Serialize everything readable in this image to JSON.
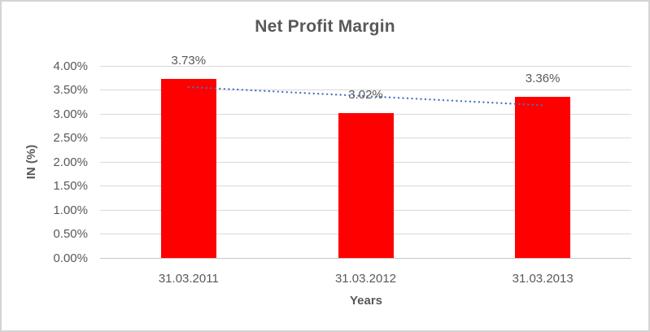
{
  "frame": {
    "background": "#FFFFFF",
    "border_color": "#D4D4D4"
  },
  "chart_data": {
    "type": "bar",
    "title": "Net Profit Margin",
    "xlabel": "Years",
    "ylabel": "IN (%)",
    "categories": [
      "31.03.2011",
      "31.03.2012",
      "31.03.2013"
    ],
    "values": [
      3.73,
      3.02,
      3.36
    ],
    "data_labels": [
      "3.73%",
      "3.02%",
      "3.36%"
    ],
    "y_ticks": [
      "4.00%",
      "3.50%",
      "3.00%",
      "2.50%",
      "2.00%",
      "1.50%",
      "1.00%",
      "0.50%",
      "0.00%"
    ],
    "ylim": [
      0,
      4
    ],
    "y_step": 0.5,
    "grid": true,
    "legend": "none",
    "bar_color": "#FF0000",
    "trendline": {
      "type": "linear",
      "style": "dotted",
      "color": "#4472C4",
      "start_value": 3.56,
      "end_value": 3.18
    },
    "text_color": "#595959",
    "gridline_color": "#D9D9D9",
    "axis_line_color": "#C6C6C6"
  }
}
